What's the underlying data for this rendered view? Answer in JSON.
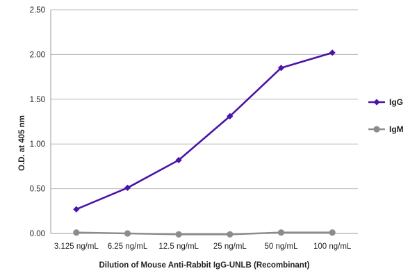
{
  "chart_data": {
    "type": "line",
    "title": "",
    "xlabel": "Dilution of Mouse Anti-Rabbit IgG-UNLB (Recombinant)",
    "ylabel": "O.D. at 405 nm",
    "ylim": [
      0,
      2.5
    ],
    "yticks": [
      "0.00",
      "0.50",
      "1.00",
      "1.50",
      "2.00",
      "2.50"
    ],
    "categories": [
      "3.125 ng/mL",
      "6.25 ng/mL",
      "12.5 ng/mL",
      "25 ng/mL",
      "50 ng/mL",
      "100 ng/mL"
    ],
    "grid": "horizontal",
    "legend_position": "right",
    "series": [
      {
        "name": "IgG",
        "color": "#4a14a8",
        "marker": "diamond",
        "values": [
          0.27,
          0.51,
          0.82,
          1.31,
          1.85,
          2.02
        ]
      },
      {
        "name": "IgM",
        "color": "#8c8c8c",
        "marker": "circle",
        "values": [
          0.01,
          0.0,
          -0.01,
          -0.01,
          0.01,
          0.01
        ]
      }
    ]
  }
}
